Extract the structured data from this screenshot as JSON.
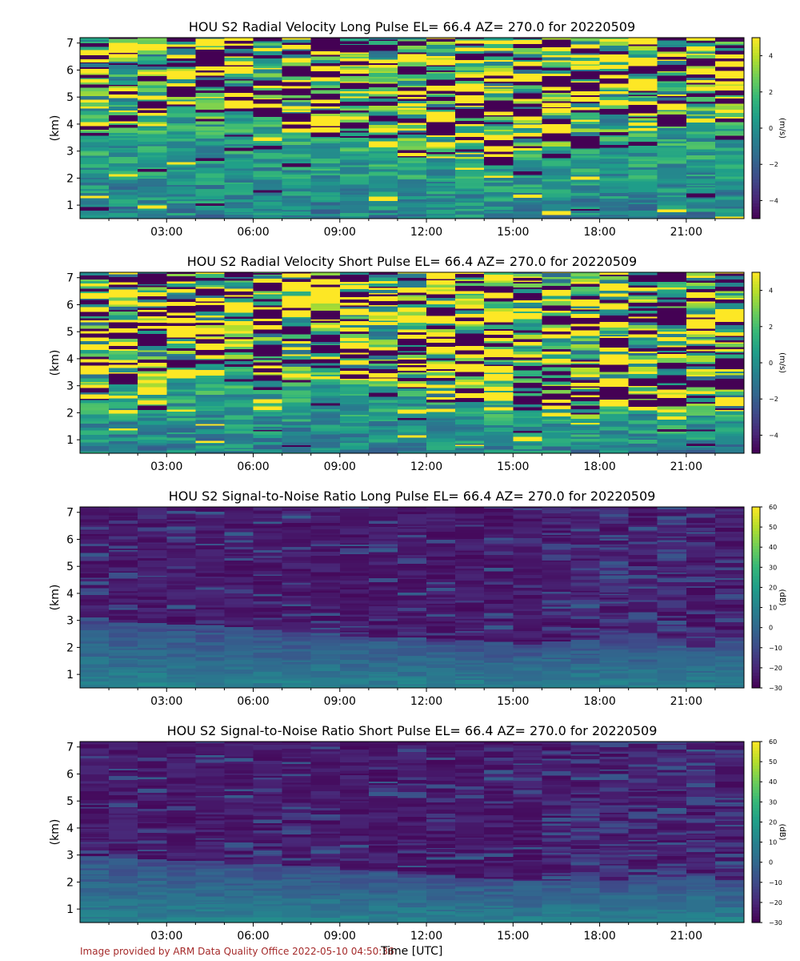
{
  "figure": {
    "xlabel": "Time [UTC]",
    "credit": "Image provided by ARM Data Quality Office 2022-05-10 04:50:36"
  },
  "chart_data": [
    {
      "type": "heatmap",
      "title": "HOU S2 Radial Velocity Long Pulse EL= 66.4 AZ= 270.0 for 20220509",
      "ylabel": "(km)",
      "xlabel": "",
      "x_tick_labels": [
        "03:00",
        "06:00",
        "09:00",
        "12:00",
        "15:00",
        "18:00",
        "21:00"
      ],
      "x_tick_hours": [
        3,
        6,
        9,
        12,
        15,
        18,
        21
      ],
      "xlim_hours": [
        0,
        23
      ],
      "y_ticks": [
        1,
        2,
        3,
        4,
        5,
        6,
        7
      ],
      "ylim": [
        0.5,
        7.2
      ],
      "colorbar": {
        "label": "(m/s)",
        "ticks": [
          "4",
          "2",
          "0",
          "−2",
          "−4"
        ],
        "tick_values": [
          4,
          2,
          0,
          -2,
          -4
        ],
        "range": [
          -5,
          5
        ],
        "colormap": "viridis"
      },
      "variable": "velocity"
    },
    {
      "type": "heatmap",
      "title": "HOU S2 Radial Velocity Short Pulse EL= 66.4 AZ= 270.0 for 20220509",
      "ylabel": "(km)",
      "xlabel": "",
      "x_tick_labels": [
        "03:00",
        "06:00",
        "09:00",
        "12:00",
        "15:00",
        "18:00",
        "21:00"
      ],
      "x_tick_hours": [
        3,
        6,
        9,
        12,
        15,
        18,
        21
      ],
      "xlim_hours": [
        0,
        23
      ],
      "y_ticks": [
        1,
        2,
        3,
        4,
        5,
        6,
        7
      ],
      "ylim": [
        0.5,
        7.2
      ],
      "colorbar": {
        "label": "(m/s)",
        "ticks": [
          "4",
          "2",
          "0",
          "−2",
          "−4"
        ],
        "tick_values": [
          4,
          2,
          0,
          -2,
          -4
        ],
        "range": [
          -5,
          5
        ],
        "colormap": "viridis"
      },
      "variable": "velocity"
    },
    {
      "type": "heatmap",
      "title": "HOU S2 Signal-to-Noise Ratio Long Pulse EL= 66.4 AZ= 270.0 for 20220509",
      "ylabel": "(km)",
      "xlabel": "",
      "x_tick_labels": [
        "03:00",
        "06:00",
        "09:00",
        "12:00",
        "15:00",
        "18:00",
        "21:00"
      ],
      "x_tick_hours": [
        3,
        6,
        9,
        12,
        15,
        18,
        21
      ],
      "xlim_hours": [
        0,
        23
      ],
      "y_ticks": [
        1,
        2,
        3,
        4,
        5,
        6,
        7
      ],
      "ylim": [
        0.5,
        7.2
      ],
      "colorbar": {
        "label": "(dB)",
        "ticks": [
          "60",
          "50",
          "40",
          "30",
          "20",
          "10",
          "0",
          "−10",
          "−20",
          "−30"
        ],
        "tick_values": [
          60,
          50,
          40,
          30,
          20,
          10,
          0,
          -10,
          -20,
          -30
        ],
        "range": [
          -30,
          60
        ],
        "colormap": "viridis"
      },
      "variable": "snr"
    },
    {
      "type": "heatmap",
      "title": "HOU S2 Signal-to-Noise Ratio Short Pulse EL= 66.4 AZ= 270.0 for 20220509",
      "ylabel": "(km)",
      "xlabel": "",
      "x_tick_labels": [
        "03:00",
        "06:00",
        "09:00",
        "12:00",
        "15:00",
        "18:00",
        "21:00"
      ],
      "x_tick_hours": [
        3,
        6,
        9,
        12,
        15,
        18,
        21
      ],
      "xlim_hours": [
        0,
        23
      ],
      "y_ticks": [
        1,
        2,
        3,
        4,
        5,
        6,
        7
      ],
      "ylim": [
        0.5,
        7.2
      ],
      "colorbar": {
        "label": "(dB)",
        "ticks": [
          "60",
          "50",
          "40",
          "30",
          "20",
          "10",
          "0",
          "−10",
          "−20",
          "−30"
        ],
        "tick_values": [
          60,
          50,
          40,
          30,
          20,
          10,
          0,
          -10,
          -20,
          -30
        ],
        "range": [
          -30,
          60
        ],
        "colormap": "viridis"
      },
      "variable": "snr"
    }
  ]
}
